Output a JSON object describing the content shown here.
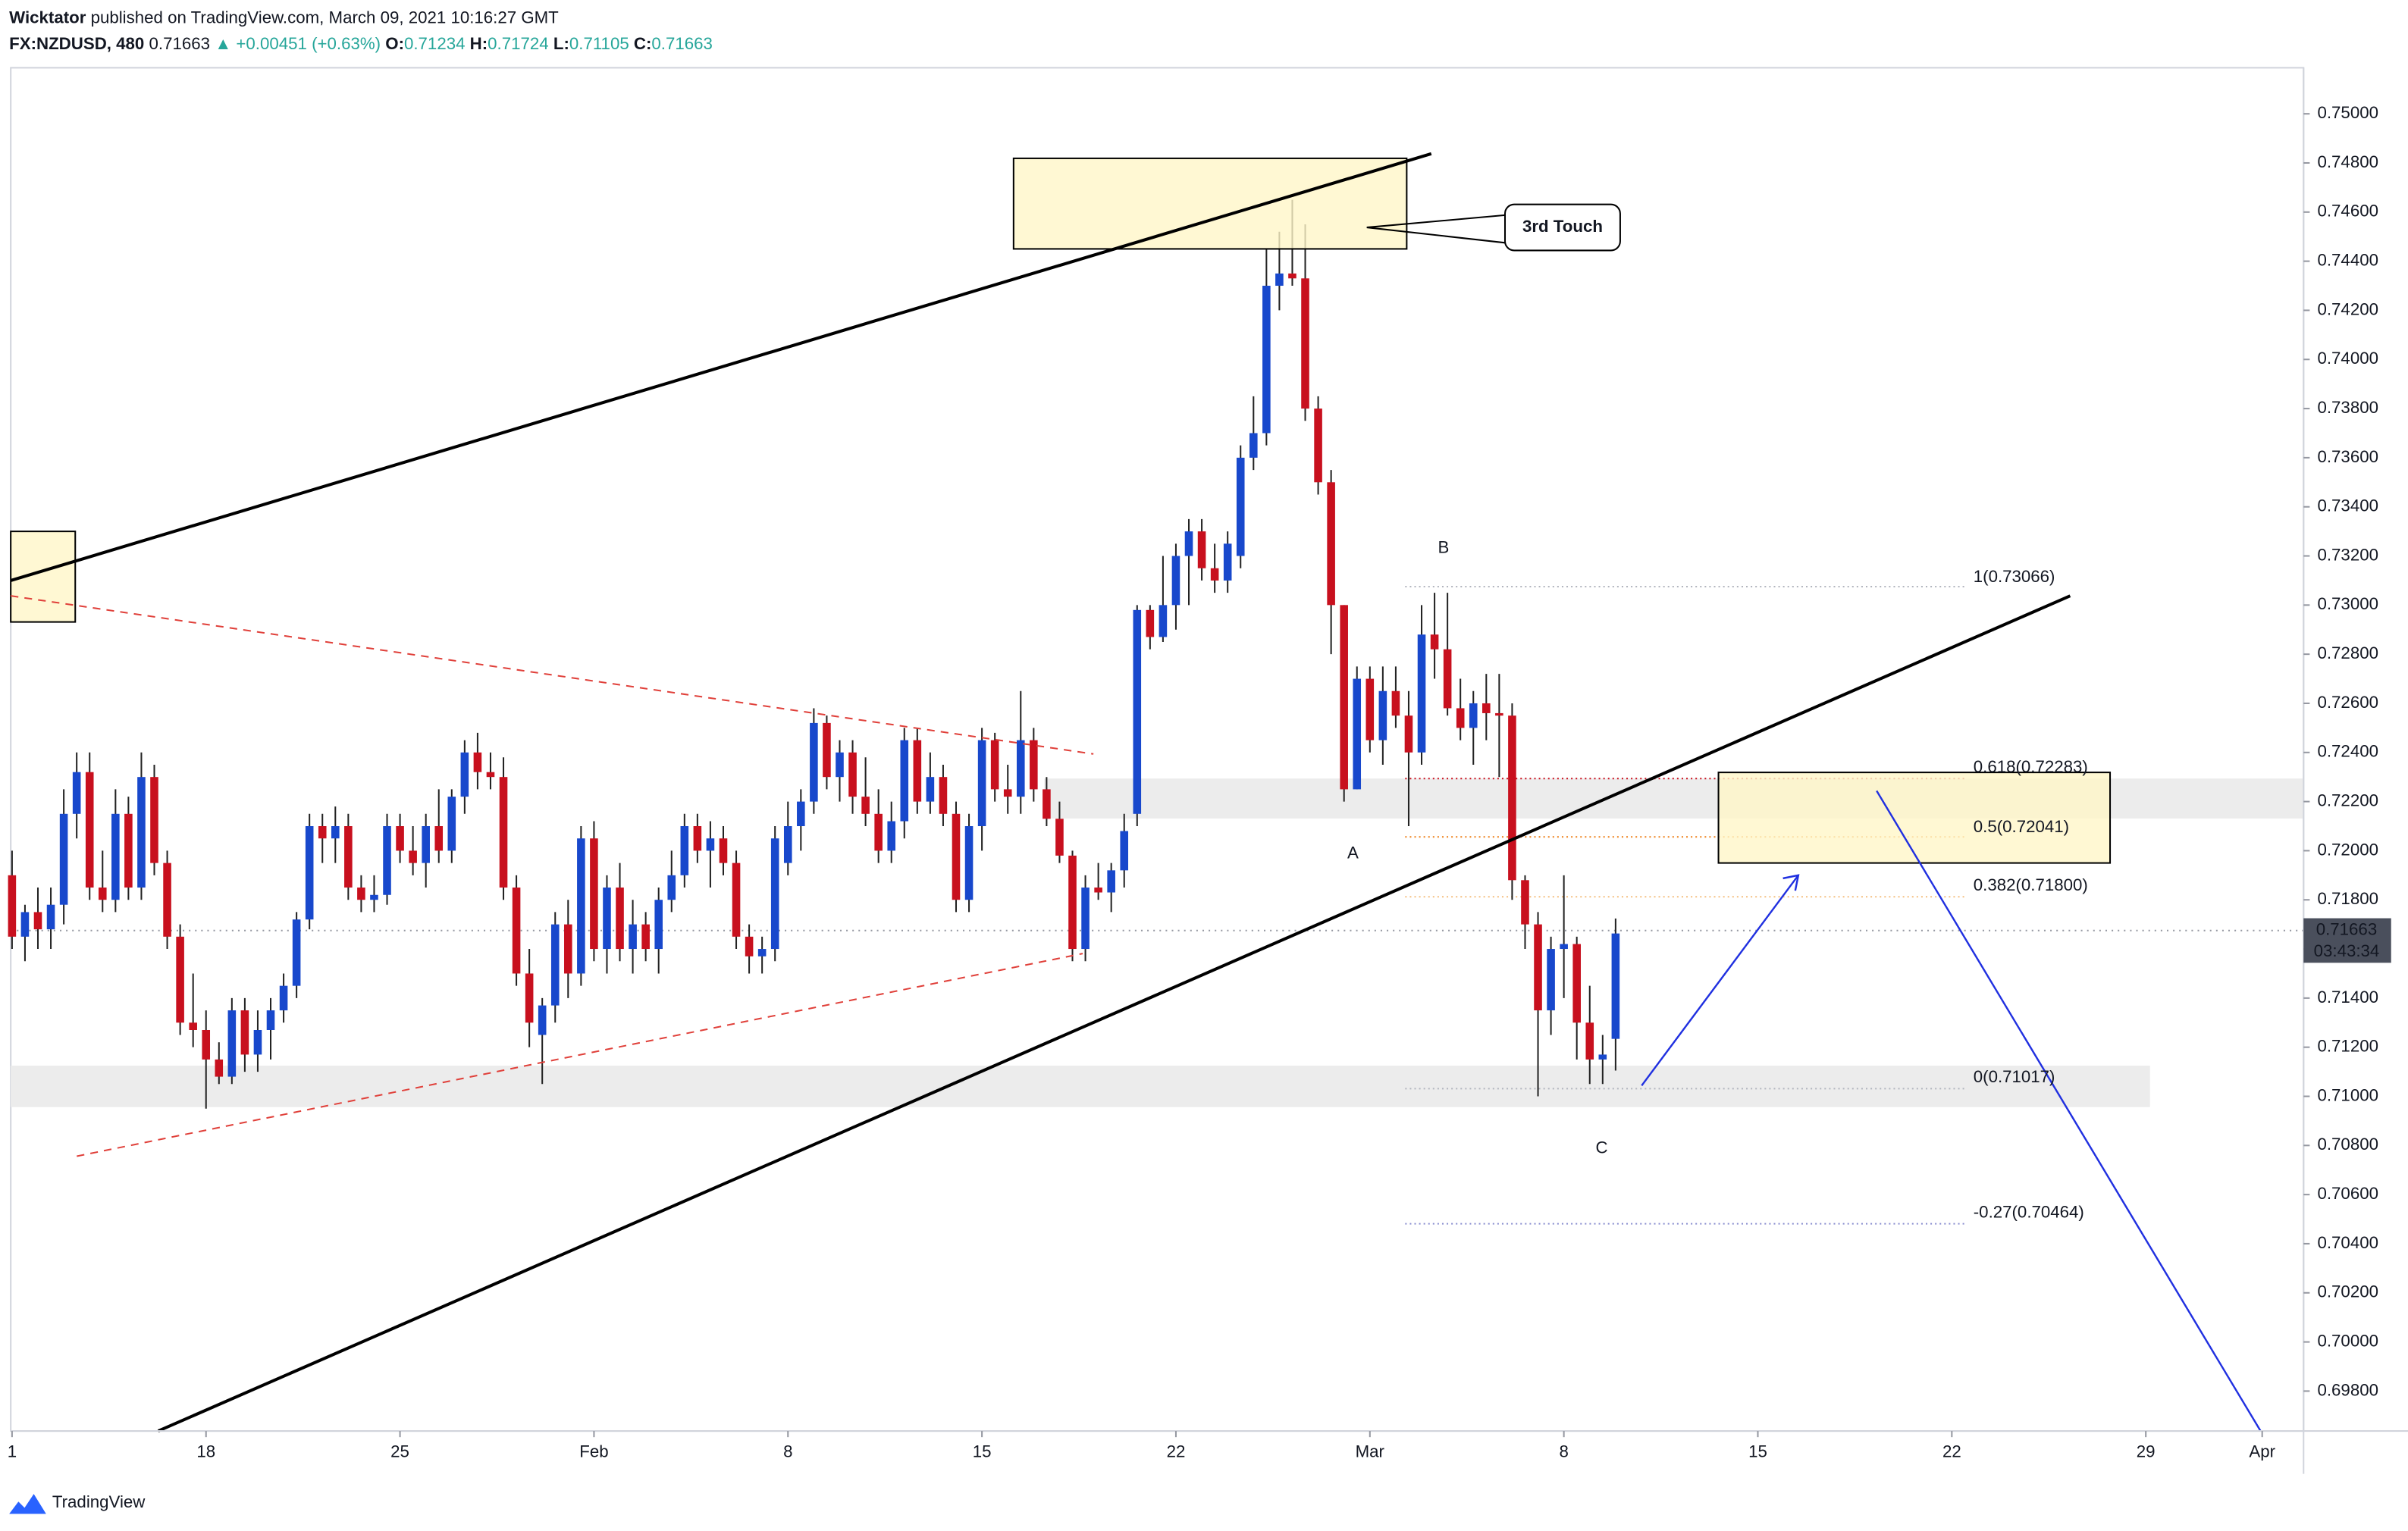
{
  "header": {
    "publisher": "Wicktator",
    "published": "published on TradingView.com, March 09, 2021 10:16:27 GMT",
    "symbol": "FX:NZDUSD, 480",
    "last": "0.71663",
    "change": "▲ +0.00451 (+0.63%)",
    "o_label": "O:",
    "o": "0.71234",
    "h_label": "H:",
    "h": "0.71724",
    "l_label": "L:",
    "l": "0.71105",
    "c_label": "C:",
    "c": "0.71663"
  },
  "annotations": {
    "callout": "3rd Touch",
    "wave_a": "A",
    "wave_b": "B",
    "wave_c": "C",
    "fib_1": "1(0.73066)",
    "fib_0618": "0.618(0.72283)",
    "fib_05": "0.5(0.72041)",
    "fib_0382": "0.382(0.71800)",
    "fib_0": "0(0.71017)",
    "fib_m027": "-0.27(0.70464)",
    "last_price_label": "0.71663",
    "countdown": "03:43:34"
  },
  "footer": {
    "brand": "TradingView"
  },
  "chart_data": {
    "type": "candlestick",
    "up_color": "#1848cc",
    "down_color": "#c8101e",
    "grid": false,
    "xlim": [
      -0.1,
      177.2
    ],
    "ylim": [
      0.696375,
      0.751875
    ],
    "xticks": [
      {
        "value": 0,
        "label": "1"
      },
      {
        "value": 15,
        "label": "18"
      },
      {
        "value": 30,
        "label": "25"
      },
      {
        "value": 45,
        "label": "Feb"
      },
      {
        "value": 60,
        "label": "8"
      },
      {
        "value": 75,
        "label": "15"
      },
      {
        "value": 90,
        "label": "22"
      },
      {
        "value": 105,
        "label": "Mar"
      },
      {
        "value": 120,
        "label": "8"
      },
      {
        "value": 135,
        "label": "15"
      },
      {
        "value": 150,
        "label": "22"
      },
      {
        "value": 165,
        "label": "29"
      },
      {
        "value": 174,
        "label": "Apr"
      }
    ],
    "yticks": [
      {
        "value": 0.698,
        "label": "0.69800"
      },
      {
        "value": 0.7,
        "label": "0.70000"
      },
      {
        "value": 0.702,
        "label": "0.70200"
      },
      {
        "value": 0.704,
        "label": "0.70400"
      },
      {
        "value": 0.706,
        "label": "0.70600"
      },
      {
        "value": 0.708,
        "label": "0.70800"
      },
      {
        "value": 0.71,
        "label": "0.71000"
      },
      {
        "value": 0.712,
        "label": "0.71200"
      },
      {
        "value": 0.714,
        "label": "0.71400"
      },
      {
        "value": 0.716,
        "label": "0.71600"
      },
      {
        "value": 0.718,
        "label": "0.71800"
      },
      {
        "value": 0.72,
        "label": "0.72000"
      },
      {
        "value": 0.722,
        "label": "0.72200"
      },
      {
        "value": 0.724,
        "label": "0.72400"
      },
      {
        "value": 0.726,
        "label": "0.72600"
      },
      {
        "value": 0.728,
        "label": "0.72800"
      },
      {
        "value": 0.73,
        "label": "0.73000"
      },
      {
        "value": 0.732,
        "label": "0.73200"
      },
      {
        "value": 0.734,
        "label": "0.73400"
      },
      {
        "value": 0.736,
        "label": "0.73600"
      },
      {
        "value": 0.738,
        "label": "0.73800"
      },
      {
        "value": 0.74,
        "label": "0.74000"
      },
      {
        "value": 0.742,
        "label": "0.74200"
      },
      {
        "value": 0.744,
        "label": "0.74400"
      },
      {
        "value": 0.746,
        "label": "0.74600"
      },
      {
        "value": 0.748,
        "label": "0.74800"
      },
      {
        "value": 0.75,
        "label": "0.75000"
      }
    ],
    "open": [
      0.719,
      0.7165,
      0.7175,
      0.7168,
      0.7178,
      0.7215,
      0.7232,
      0.7185,
      0.718,
      0.7215,
      0.7185,
      0.723,
      0.7195,
      0.7165,
      0.713,
      0.7127,
      0.7115,
      0.7108,
      0.7135,
      0.7117,
      0.7127,
      0.7135,
      0.7145,
      0.7172,
      0.721,
      0.7205,
      0.721,
      0.7185,
      0.718,
      0.7182,
      0.721,
      0.72,
      0.7195,
      0.721,
      0.72,
      0.7222,
      0.724,
      0.7232,
      0.723,
      0.7185,
      0.715,
      0.7125,
      0.7137,
      0.717,
      0.715,
      0.7205,
      0.716,
      0.7185,
      0.716,
      0.717,
      0.716,
      0.718,
      0.719,
      0.721,
      0.72,
      0.7205,
      0.7195,
      0.7165,
      0.7157,
      0.716,
      0.7195,
      0.721,
      0.722,
      0.7252,
      0.723,
      0.724,
      0.7222,
      0.7215,
      0.72,
      0.7212,
      0.7245,
      0.722,
      0.723,
      0.7215,
      0.718,
      0.721,
      0.7245,
      0.7225,
      0.7222,
      0.7245,
      0.7225,
      0.7213,
      0.7198,
      0.716,
      0.7185,
      0.7183,
      0.7192,
      0.7215,
      0.7298,
      0.7287,
      0.73,
      0.732,
      0.733,
      0.7315,
      0.731,
      0.732,
      0.736,
      0.737,
      0.743,
      0.7435,
      0.7433,
      0.738,
      0.735,
      0.73,
      0.7225,
      0.727,
      0.7245,
      0.7265,
      0.7255,
      0.724,
      0.7288,
      0.7282,
      0.7258,
      0.725,
      0.726,
      0.7256,
      0.7255,
      0.7188,
      0.717,
      0.7135,
      0.716,
      0.7162,
      0.713,
      0.7115,
      0.71234
    ],
    "high": [
      0.72,
      0.7178,
      0.7185,
      0.7185,
      0.7225,
      0.724,
      0.724,
      0.72,
      0.7225,
      0.7222,
      0.724,
      0.7235,
      0.72,
      0.717,
      0.715,
      0.7135,
      0.7122,
      0.714,
      0.714,
      0.7135,
      0.714,
      0.715,
      0.7175,
      0.7215,
      0.7215,
      0.7218,
      0.7215,
      0.719,
      0.719,
      0.7215,
      0.7215,
      0.721,
      0.7215,
      0.7225,
      0.7225,
      0.7245,
      0.7248,
      0.724,
      0.7238,
      0.719,
      0.716,
      0.714,
      0.7175,
      0.718,
      0.721,
      0.7212,
      0.719,
      0.7195,
      0.718,
      0.7175,
      0.7185,
      0.72,
      0.7215,
      0.7215,
      0.7212,
      0.721,
      0.72,
      0.717,
      0.7165,
      0.721,
      0.722,
      0.7225,
      0.7258,
      0.7255,
      0.7245,
      0.7245,
      0.7238,
      0.7225,
      0.722,
      0.725,
      0.725,
      0.724,
      0.7235,
      0.722,
      0.7215,
      0.725,
      0.7248,
      0.7235,
      0.7265,
      0.725,
      0.723,
      0.722,
      0.72,
      0.719,
      0.7195,
      0.7195,
      0.7215,
      0.73,
      0.73,
      0.732,
      0.7325,
      0.7335,
      0.7335,
      0.7325,
      0.733,
      0.7365,
      0.7385,
      0.7445,
      0.7452,
      0.7465,
      0.7455,
      0.7385,
      0.7355,
      0.73,
      0.7275,
      0.7275,
      0.7275,
      0.7275,
      0.7265,
      0.73,
      0.7305,
      0.7305,
      0.727,
      0.7265,
      0.7272,
      0.7272,
      0.726,
      0.719,
      0.7175,
      0.7165,
      0.719,
      0.7165,
      0.7145,
      0.7125,
      0.71724
    ],
    "low": [
      0.716,
      0.7155,
      0.716,
      0.716,
      0.717,
      0.7205,
      0.718,
      0.7175,
      0.7175,
      0.718,
      0.718,
      0.719,
      0.716,
      0.7125,
      0.712,
      0.7095,
      0.7105,
      0.7105,
      0.711,
      0.711,
      0.7115,
      0.713,
      0.714,
      0.7168,
      0.7195,
      0.7195,
      0.718,
      0.7175,
      0.7175,
      0.7178,
      0.7195,
      0.719,
      0.7185,
      0.7195,
      0.7195,
      0.7215,
      0.7225,
      0.7225,
      0.718,
      0.7145,
      0.712,
      0.7105,
      0.713,
      0.714,
      0.7145,
      0.7155,
      0.715,
      0.7155,
      0.715,
      0.7155,
      0.715,
      0.7175,
      0.7185,
      0.7195,
      0.7185,
      0.719,
      0.716,
      0.715,
      0.715,
      0.7155,
      0.719,
      0.72,
      0.7215,
      0.7225,
      0.722,
      0.7215,
      0.721,
      0.7195,
      0.7195,
      0.7205,
      0.7215,
      0.7215,
      0.721,
      0.7175,
      0.7175,
      0.72,
      0.722,
      0.7215,
      0.7215,
      0.722,
      0.721,
      0.7195,
      0.7155,
      0.7155,
      0.718,
      0.7175,
      0.7185,
      0.721,
      0.7282,
      0.7285,
      0.729,
      0.73,
      0.731,
      0.7305,
      0.7305,
      0.7315,
      0.7355,
      0.7365,
      0.742,
      0.743,
      0.7375,
      0.7345,
      0.728,
      0.722,
      0.7225,
      0.724,
      0.7235,
      0.725,
      0.721,
      0.7235,
      0.727,
      0.7255,
      0.7245,
      0.7235,
      0.7245,
      0.723,
      0.718,
      0.716,
      0.71,
      0.7125,
      0.714,
      0.7115,
      0.7105,
      0.7105,
      0.71105
    ],
    "close": [
      0.7165,
      0.7175,
      0.7168,
      0.7178,
      0.7215,
      0.7232,
      0.7185,
      0.718,
      0.7215,
      0.7185,
      0.723,
      0.7195,
      0.7165,
      0.713,
      0.7127,
      0.7115,
      0.7108,
      0.7135,
      0.7117,
      0.7127,
      0.7135,
      0.7145,
      0.7172,
      0.721,
      0.7205,
      0.721,
      0.7185,
      0.718,
      0.7182,
      0.721,
      0.72,
      0.7195,
      0.721,
      0.72,
      0.7222,
      0.724,
      0.7232,
      0.723,
      0.7185,
      0.715,
      0.713,
      0.7137,
      0.717,
      0.715,
      0.7205,
      0.716,
      0.7185,
      0.716,
      0.717,
      0.716,
      0.718,
      0.719,
      0.721,
      0.72,
      0.7205,
      0.7195,
      0.7165,
      0.7157,
      0.716,
      0.7205,
      0.721,
      0.722,
      0.7252,
      0.723,
      0.724,
      0.7222,
      0.7215,
      0.72,
      0.7212,
      0.7245,
      0.722,
      0.723,
      0.7215,
      0.718,
      0.721,
      0.7245,
      0.7225,
      0.7222,
      0.7245,
      0.7225,
      0.7213,
      0.7198,
      0.716,
      0.7185,
      0.7183,
      0.7192,
      0.7208,
      0.7298,
      0.7287,
      0.73,
      0.732,
      0.733,
      0.7315,
      0.731,
      0.7325,
      0.736,
      0.737,
      0.743,
      0.7435,
      0.7433,
      0.738,
      0.735,
      0.73,
      0.7225,
      0.727,
      0.7245,
      0.7265,
      0.7255,
      0.724,
      0.7288,
      0.7282,
      0.7258,
      0.725,
      0.726,
      0.7256,
      0.7255,
      0.7188,
      0.717,
      0.7135,
      0.716,
      0.7162,
      0.713,
      0.7115,
      0.7117,
      0.71663
    ]
  }
}
